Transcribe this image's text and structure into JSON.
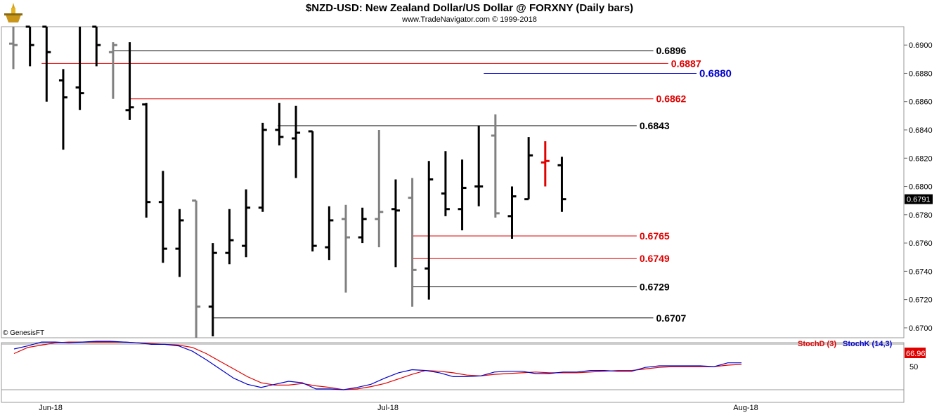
{
  "header": {
    "title": "$NZD-USD:  New Zealand Dollar/US Dollar @ FORXNY  (Daily bars)",
    "subtitle": "www.TradeNavigator.com © 1999-2018",
    "copyright": "© GenesisFT"
  },
  "chart_data": {
    "type": "ohlc",
    "price_axis": {
      "ticks": [
        "0.6900",
        "0.6880",
        "0.6860",
        "0.6840",
        "0.6820",
        "0.6800",
        "0.6780",
        "0.6760",
        "0.6740",
        "0.6720",
        "0.6700"
      ],
      "range": [
        0.6693,
        0.6913
      ],
      "last_price": "0.6791"
    },
    "x_axis": {
      "labels": [
        "Jun-18",
        "Jul-18",
        "Aug-18"
      ]
    },
    "bars": [
      {
        "o": 0.6901,
        "h": 0.6913,
        "l": 0.6883,
        "c": 0.69,
        "color": "#808080"
      },
      {
        "o": 0.6913,
        "h": 0.6913,
        "l": 0.6885,
        "c": 0.69,
        "color": "#000000"
      },
      {
        "o": 0.6913,
        "h": 0.6913,
        "l": 0.686,
        "c": 0.6895,
        "color": "#000000"
      },
      {
        "o": 0.6875,
        "h": 0.6883,
        "l": 0.6826,
        "c": 0.6863,
        "color": "#000000"
      },
      {
        "o": 0.687,
        "h": 0.6913,
        "l": 0.6854,
        "c": 0.6866,
        "color": "#000000"
      },
      {
        "o": 0.6913,
        "h": 0.6913,
        "l": 0.6885,
        "c": 0.69,
        "color": "#000000"
      },
      {
        "o": 0.6895,
        "h": 0.6902,
        "l": 0.6862,
        "c": 0.69,
        "color": "#808080"
      },
      {
        "o": 0.6854,
        "h": 0.6902,
        "l": 0.6847,
        "c": 0.6856,
        "color": "#000000"
      },
      {
        "o": 0.6858,
        "h": 0.6859,
        "l": 0.6778,
        "c": 0.6789,
        "color": "#000000"
      },
      {
        "o": 0.6789,
        "h": 0.6811,
        "l": 0.6746,
        "c": 0.6756,
        "color": "#000000"
      },
      {
        "o": 0.6756,
        "h": 0.6784,
        "l": 0.6736,
        "c": 0.6776,
        "color": "#000000"
      },
      {
        "o": 0.679,
        "h": 0.679,
        "l": 0.6693,
        "c": 0.6715,
        "color": "#808080"
      },
      {
        "o": 0.6715,
        "h": 0.676,
        "l": 0.6694,
        "c": 0.6753,
        "color": "#000000"
      },
      {
        "o": 0.6753,
        "h": 0.6784,
        "l": 0.6745,
        "c": 0.6762,
        "color": "#000000"
      },
      {
        "o": 0.6758,
        "h": 0.6798,
        "l": 0.675,
        "c": 0.6785,
        "color": "#000000"
      },
      {
        "o": 0.6785,
        "h": 0.6845,
        "l": 0.6782,
        "c": 0.684,
        "color": "#000000"
      },
      {
        "o": 0.684,
        "h": 0.6859,
        "l": 0.6829,
        "c": 0.6835,
        "color": "#000000"
      },
      {
        "o": 0.6834,
        "h": 0.6857,
        "l": 0.6806,
        "c": 0.6838,
        "color": "#000000"
      },
      {
        "o": 0.6839,
        "h": 0.6839,
        "l": 0.6754,
        "c": 0.6758,
        "color": "#000000"
      },
      {
        "o": 0.6757,
        "h": 0.6786,
        "l": 0.6748,
        "c": 0.6776,
        "color": "#000000"
      },
      {
        "o": 0.6777,
        "h": 0.6787,
        "l": 0.6725,
        "c": 0.6764,
        "color": "#808080"
      },
      {
        "o": 0.6764,
        "h": 0.6785,
        "l": 0.676,
        "c": 0.6777,
        "color": "#000000"
      },
      {
        "o": 0.6777,
        "h": 0.684,
        "l": 0.6757,
        "c": 0.6782,
        "color": "#808080"
      },
      {
        "o": 0.6784,
        "h": 0.6805,
        "l": 0.6743,
        "c": 0.6783,
        "color": "#000000"
      },
      {
        "o": 0.6792,
        "h": 0.6806,
        "l": 0.6715,
        "c": 0.6741,
        "color": "#808080"
      },
      {
        "o": 0.6742,
        "h": 0.6818,
        "l": 0.672,
        "c": 0.6805,
        "color": "#000000"
      },
      {
        "o": 0.6795,
        "h": 0.6825,
        "l": 0.6779,
        "c": 0.6784,
        "color": "#000000"
      },
      {
        "o": 0.6784,
        "h": 0.6819,
        "l": 0.6769,
        "c": 0.6799,
        "color": "#000000"
      },
      {
        "o": 0.68,
        "h": 0.6843,
        "l": 0.6786,
        "c": 0.68,
        "color": "#000000"
      },
      {
        "o": 0.6836,
        "h": 0.6851,
        "l": 0.6778,
        "c": 0.6781,
        "color": "#808080"
      },
      {
        "o": 0.6779,
        "h": 0.68,
        "l": 0.6763,
        "c": 0.6793,
        "color": "#000000"
      },
      {
        "o": 0.6791,
        "h": 0.6835,
        "l": 0.6791,
        "c": 0.6822,
        "color": "#000000"
      },
      {
        "o": 0.6817,
        "h": 0.6832,
        "l": 0.68,
        "c": 0.6818,
        "color": "#e00000"
      },
      {
        "o": 0.6815,
        "h": 0.6821,
        "l": 0.6782,
        "c": 0.6791,
        "color": "#000000"
      }
    ],
    "levels": [
      {
        "label": "0.6896",
        "value": 0.6896,
        "color": "#000000",
        "from_bar": 6,
        "to_bar": 38.5
      },
      {
        "label": "0.6887",
        "value": 0.6887,
        "color": "#e00000",
        "from_bar": 1.7,
        "to_bar": 39.4
      },
      {
        "label": "0.6880",
        "value": 0.688,
        "color": "#0000cc",
        "from_bar": 28.3,
        "to_bar": 41.1
      },
      {
        "label": "0.6862",
        "value": 0.6862,
        "color": "#e00000",
        "from_bar": 7,
        "to_bar": 38.5
      },
      {
        "label": "0.6843",
        "value": 0.6843,
        "color": "#000000",
        "from_bar": 15.9,
        "to_bar": 37.5
      },
      {
        "label": "0.6765",
        "value": 0.6765,
        "color": "#e00000",
        "from_bar": 24,
        "to_bar": 37.5
      },
      {
        "label": "0.6749",
        "value": 0.6749,
        "color": "#e00000",
        "from_bar": 24,
        "to_bar": 37.5
      },
      {
        "label": "0.6729",
        "value": 0.6729,
        "color": "#000000",
        "from_bar": 24,
        "to_bar": 37.5
      },
      {
        "label": "0.6707",
        "value": 0.6707,
        "color": "#000000",
        "from_bar": 12,
        "to_bar": 38.5
      }
    ],
    "stochastic": {
      "legend": [
        {
          "name": "StochD (3)",
          "color": "#e00000"
        },
        {
          "name": "StochK (14,3)",
          "color": "#0000cc"
        }
      ],
      "axis_label": "50",
      "value_badge": "66.96",
      "k": [
        66,
        70,
        75,
        75,
        74,
        75,
        76,
        76,
        75,
        74,
        72,
        72,
        70,
        63,
        52,
        40,
        28,
        20,
        16,
        20,
        24,
        22,
        14,
        14,
        13,
        16,
        20,
        28,
        35,
        39,
        38,
        35,
        30,
        30,
        31,
        36,
        37,
        37,
        34,
        34,
        36,
        36,
        38,
        38,
        37,
        37,
        42,
        44,
        44,
        44,
        44,
        43,
        48,
        48
      ],
      "d": [
        60,
        68,
        71,
        74,
        75,
        75,
        75,
        75,
        75,
        74,
        73,
        72,
        71,
        68,
        60,
        50,
        40,
        30,
        22,
        19,
        19,
        21,
        18,
        16,
        13,
        14,
        17,
        21,
        27,
        33,
        38,
        37,
        35,
        32,
        31,
        33,
        34,
        35,
        36,
        35,
        35,
        35,
        36,
        37,
        38,
        38,
        40,
        42,
        43,
        43,
        43,
        43,
        45,
        46
      ]
    }
  }
}
